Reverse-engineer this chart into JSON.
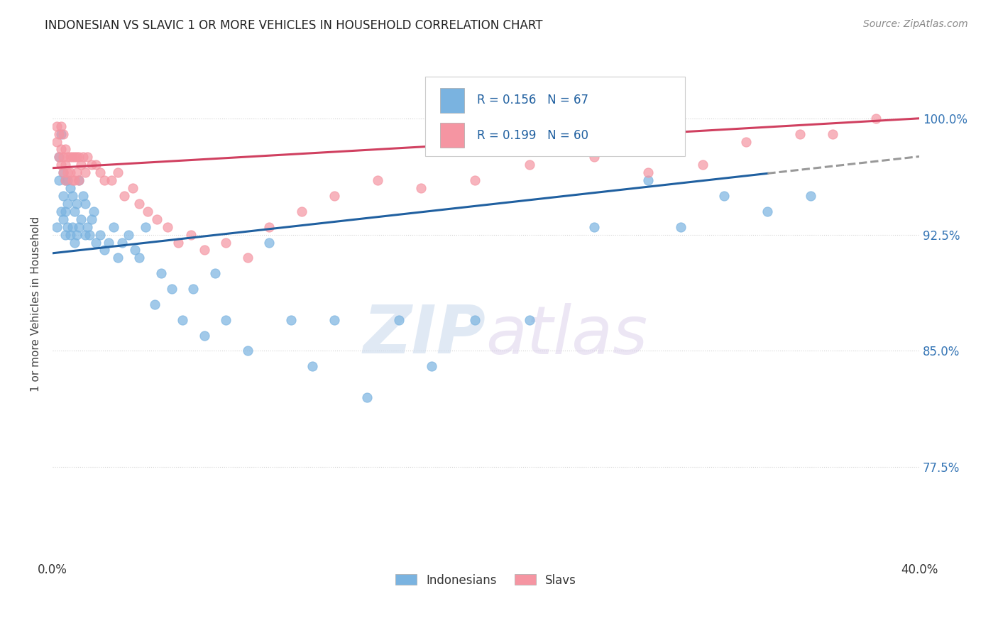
{
  "title": "INDONESIAN VS SLAVIC 1 OR MORE VEHICLES IN HOUSEHOLD CORRELATION CHART",
  "source": "Source: ZipAtlas.com",
  "ylabel": "1 or more Vehicles in Household",
  "ytick_labels": [
    "100.0%",
    "92.5%",
    "85.0%",
    "77.5%"
  ],
  "ytick_values": [
    1.0,
    0.925,
    0.85,
    0.775
  ],
  "xlim": [
    0.0,
    0.4
  ],
  "ylim": [
    0.715,
    1.045
  ],
  "legend_label1": "Indonesians",
  "legend_label2": "Slavs",
  "blue_color": "#7ab3e0",
  "pink_color": "#f595a2",
  "trend_blue": "#2060a0",
  "trend_pink": "#d04060",
  "indonesian_x": [
    0.002,
    0.003,
    0.003,
    0.004,
    0.004,
    0.005,
    0.005,
    0.005,
    0.006,
    0.006,
    0.006,
    0.007,
    0.007,
    0.007,
    0.008,
    0.008,
    0.009,
    0.009,
    0.01,
    0.01,
    0.011,
    0.011,
    0.012,
    0.012,
    0.013,
    0.014,
    0.015,
    0.015,
    0.016,
    0.017,
    0.018,
    0.019,
    0.02,
    0.022,
    0.024,
    0.026,
    0.028,
    0.03,
    0.032,
    0.035,
    0.038,
    0.04,
    0.043,
    0.047,
    0.05,
    0.055,
    0.06,
    0.065,
    0.07,
    0.075,
    0.08,
    0.09,
    0.1,
    0.11,
    0.12,
    0.13,
    0.145,
    0.16,
    0.175,
    0.195,
    0.22,
    0.25,
    0.275,
    0.29,
    0.31,
    0.33,
    0.35
  ],
  "indonesian_y": [
    0.93,
    0.96,
    0.975,
    0.94,
    0.99,
    0.935,
    0.95,
    0.965,
    0.925,
    0.94,
    0.96,
    0.93,
    0.945,
    0.96,
    0.925,
    0.955,
    0.93,
    0.95,
    0.92,
    0.94,
    0.925,
    0.945,
    0.93,
    0.96,
    0.935,
    0.95,
    0.925,
    0.945,
    0.93,
    0.925,
    0.935,
    0.94,
    0.92,
    0.925,
    0.915,
    0.92,
    0.93,
    0.91,
    0.92,
    0.925,
    0.915,
    0.91,
    0.93,
    0.88,
    0.9,
    0.89,
    0.87,
    0.89,
    0.86,
    0.9,
    0.87,
    0.85,
    0.92,
    0.87,
    0.84,
    0.87,
    0.82,
    0.87,
    0.84,
    0.87,
    0.87,
    0.93,
    0.96,
    0.93,
    0.95,
    0.94,
    0.95
  ],
  "slavic_x": [
    0.002,
    0.002,
    0.003,
    0.003,
    0.004,
    0.004,
    0.004,
    0.005,
    0.005,
    0.005,
    0.006,
    0.006,
    0.006,
    0.007,
    0.007,
    0.008,
    0.008,
    0.009,
    0.009,
    0.01,
    0.01,
    0.011,
    0.011,
    0.012,
    0.012,
    0.013,
    0.014,
    0.015,
    0.016,
    0.018,
    0.02,
    0.022,
    0.024,
    0.027,
    0.03,
    0.033,
    0.037,
    0.04,
    0.044,
    0.048,
    0.053,
    0.058,
    0.064,
    0.07,
    0.08,
    0.09,
    0.1,
    0.115,
    0.13,
    0.15,
    0.17,
    0.195,
    0.22,
    0.25,
    0.275,
    0.3,
    0.32,
    0.345,
    0.36,
    0.38
  ],
  "slavic_y": [
    0.985,
    0.995,
    0.975,
    0.99,
    0.97,
    0.98,
    0.995,
    0.965,
    0.975,
    0.99,
    0.96,
    0.97,
    0.98,
    0.965,
    0.975,
    0.965,
    0.975,
    0.96,
    0.975,
    0.96,
    0.975,
    0.965,
    0.975,
    0.96,
    0.975,
    0.97,
    0.975,
    0.965,
    0.975,
    0.97,
    0.97,
    0.965,
    0.96,
    0.96,
    0.965,
    0.95,
    0.955,
    0.945,
    0.94,
    0.935,
    0.93,
    0.92,
    0.925,
    0.915,
    0.92,
    0.91,
    0.93,
    0.94,
    0.95,
    0.96,
    0.955,
    0.96,
    0.97,
    0.975,
    0.965,
    0.97,
    0.985,
    0.99,
    0.99,
    1.0
  ],
  "watermark_zip": "ZIP",
  "watermark_atlas": "atlas"
}
